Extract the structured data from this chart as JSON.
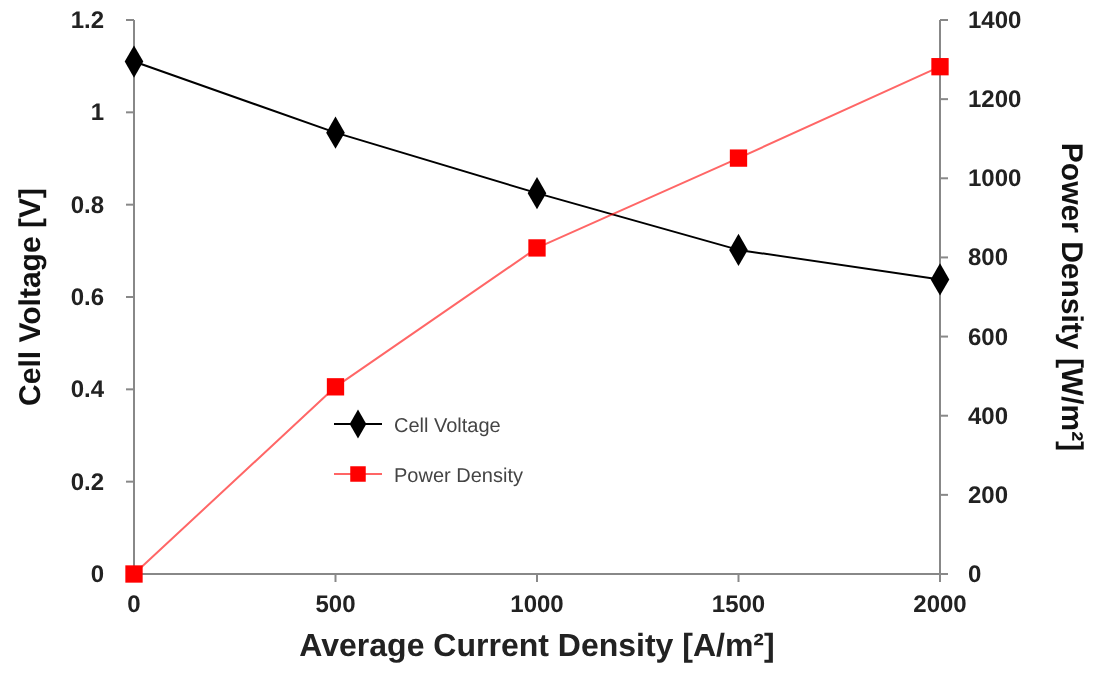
{
  "chart_data": {
    "type": "line",
    "xlabel": "Average Current Density [A/m²]",
    "ylabel": "Cell Voltage [V]",
    "y2label": "Power Density [W/m²]",
    "x": [
      0,
      500,
      1000,
      1500,
      2000
    ],
    "xlim": [
      0,
      2000
    ],
    "xticks": [
      0,
      500,
      1000,
      1500,
      2000
    ],
    "ylim": [
      0,
      1.2
    ],
    "yticks": [
      0,
      0.2,
      0.4,
      0.6,
      0.8,
      1,
      1.2
    ],
    "y2lim": [
      0,
      1400
    ],
    "y2ticks": [
      0,
      200,
      400,
      600,
      800,
      1000,
      1200,
      1400
    ],
    "grid": false,
    "legend": "bottom left",
    "series": [
      {
        "name": "Cell Voltage",
        "color": "#000000",
        "marker": "diamond",
        "values": [
          1.11,
          0.956,
          0.825,
          0.702,
          0.638
        ]
      },
      {
        "name": "Power Density",
        "color": "#ff0000",
        "marker": "square",
        "axis": "y2",
        "values": [
          0,
          473,
          824,
          1051,
          1282
        ]
      }
    ]
  }
}
